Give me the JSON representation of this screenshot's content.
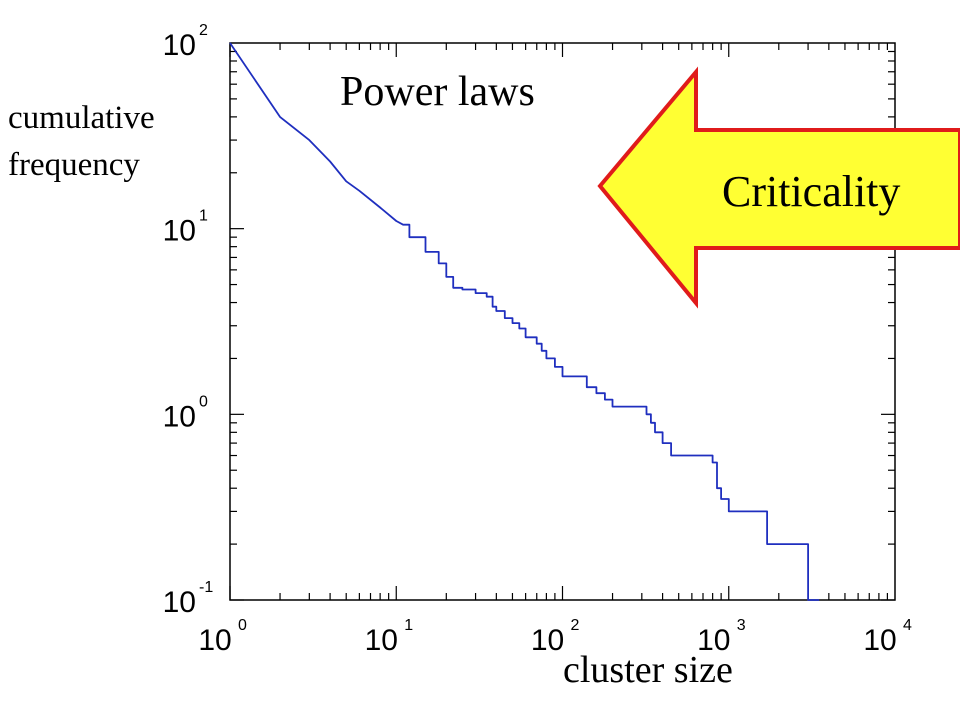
{
  "chart_data": {
    "type": "line",
    "title": "Power laws",
    "xlabel": "cluster size",
    "ylabel_lines": [
      "cumulative",
      "frequency"
    ],
    "xscale": "log",
    "yscale": "log",
    "xlim": [
      1,
      10000
    ],
    "ylim": [
      0.1,
      100
    ],
    "x_ticks": [
      {
        "base": "10",
        "exp": "0"
      },
      {
        "base": "10",
        "exp": "1"
      },
      {
        "base": "10",
        "exp": "2"
      },
      {
        "base": "10",
        "exp": "3"
      },
      {
        "base": "10",
        "exp": "4"
      }
    ],
    "y_ticks": [
      {
        "base": "10",
        "exp": "-1"
      },
      {
        "base": "10",
        "exp": "0"
      },
      {
        "base": "10",
        "exp": "1"
      },
      {
        "base": "10",
        "exp": "2"
      }
    ],
    "grid": false,
    "series": [
      {
        "color": "#1f2fbf",
        "x": [
          1,
          2,
          3,
          4,
          5,
          6,
          8,
          10,
          11,
          12,
          15,
          18,
          20,
          22,
          25,
          30,
          35,
          38,
          40,
          45,
          50,
          55,
          60,
          65,
          70,
          75,
          80,
          90,
          100,
          120,
          140,
          160,
          180,
          200,
          250,
          300,
          320,
          340,
          360,
          400,
          450,
          500,
          600,
          700,
          750,
          800,
          850,
          900,
          1000,
          1200,
          1500,
          1700,
          2000,
          2500,
          2800,
          3000,
          3500
        ],
        "y": [
          100,
          40,
          30,
          23,
          18,
          16,
          13,
          11,
          10.5,
          9,
          7.5,
          6.5,
          5.5,
          4.8,
          4.7,
          4.5,
          4.3,
          3.8,
          3.6,
          3.3,
          3.1,
          2.9,
          2.6,
          2.6,
          2.4,
          2.2,
          2.0,
          1.8,
          1.6,
          1.6,
          1.4,
          1.3,
          1.2,
          1.1,
          1.1,
          1.1,
          1.0,
          0.9,
          0.8,
          0.7,
          0.6,
          0.6,
          0.6,
          0.6,
          0.6,
          0.55,
          0.4,
          0.35,
          0.3,
          0.3,
          0.3,
          0.2,
          0.2,
          0.2,
          0.2,
          0.1,
          0.1
        ]
      }
    ],
    "annotation": {
      "text": "Criticality",
      "shape": "left-pointing arrow",
      "fill": "#ffff33",
      "stroke": "#e01b1b"
    }
  }
}
